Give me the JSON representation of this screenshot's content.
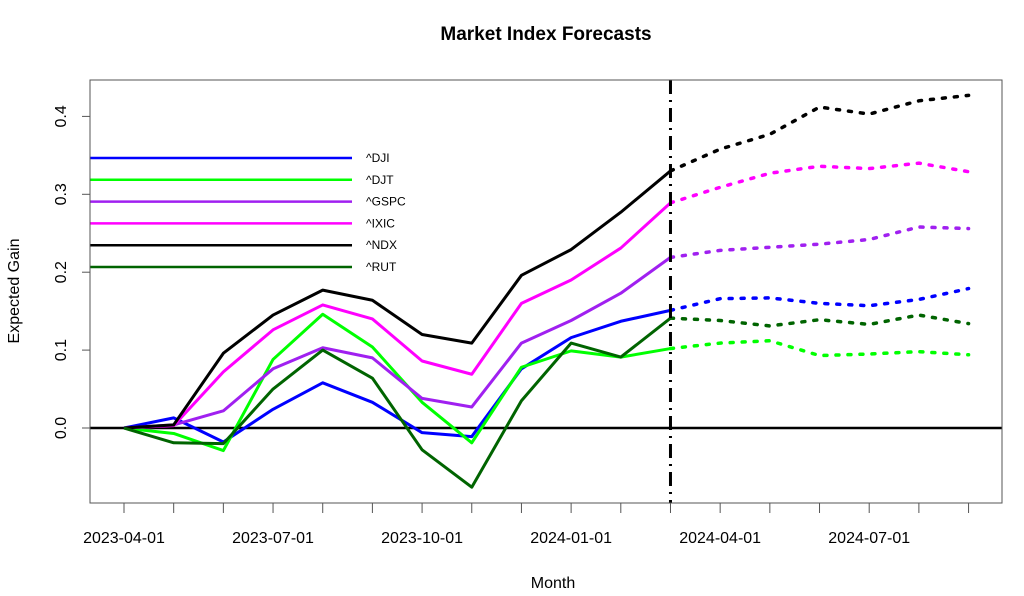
{
  "chart_data": {
    "type": "line",
    "title": "Market Index Forecasts",
    "xlabel": "Month",
    "ylabel": "Expected Gain",
    "ylim": [
      -0.096,
      0.447
    ],
    "y_ticks": [
      0.0,
      0.1,
      0.2,
      0.3,
      0.4
    ],
    "y_tick_labels": [
      "0.0",
      "0.1",
      "0.2",
      "0.3",
      "0.4"
    ],
    "x": [
      "2023-04-01",
      "2023-05-01",
      "2023-06-01",
      "2023-07-01",
      "2023-08-01",
      "2023-09-01",
      "2023-10-01",
      "2023-11-01",
      "2023-12-01",
      "2024-01-01",
      "2024-02-01",
      "2024-03-01",
      "2024-04-01",
      "2024-05-01",
      "2024-06-01",
      "2024-07-01",
      "2024-08-01",
      "2024-09-01"
    ],
    "x_tick_labels": [
      {
        "index": 0,
        "label": "2023-04-01"
      },
      {
        "index": 3,
        "label": "2023-07-01"
      },
      {
        "index": 6,
        "label": "2023-10-01"
      },
      {
        "index": 9,
        "label": "2024-01-01"
      },
      {
        "index": 12,
        "label": "2024-04-01"
      },
      {
        "index": 15,
        "label": "2024-07-01"
      }
    ],
    "forecast_start_index": 11,
    "forecast_divider": {
      "x": "2024-03-01",
      "style": "dot-dash"
    },
    "reference_line": {
      "y": 0.0
    },
    "legend_position": "top-left",
    "grid": false,
    "series": [
      {
        "name": "^DJI",
        "color": "#0000FF",
        "values": [
          0.0,
          0.013,
          -0.018,
          0.024,
          0.058,
          0.033,
          -0.006,
          -0.011,
          0.076,
          0.116,
          0.137,
          0.151,
          0.166,
          0.167,
          0.16,
          0.157,
          0.165,
          0.179
        ]
      },
      {
        "name": "^DJT",
        "color": "#00FF00",
        "values": [
          0.0,
          -0.007,
          -0.029,
          0.088,
          0.146,
          0.104,
          0.033,
          -0.019,
          0.078,
          0.099,
          0.091,
          0.102,
          0.109,
          0.112,
          0.093,
          0.095,
          0.098,
          0.094
        ]
      },
      {
        "name": "^GSPC",
        "color": "#A020F0",
        "values": [
          0.0,
          0.004,
          0.022,
          0.076,
          0.103,
          0.09,
          0.038,
          0.027,
          0.109,
          0.138,
          0.173,
          0.219,
          0.228,
          0.232,
          0.236,
          0.242,
          0.258,
          0.256
        ]
      },
      {
        "name": "^IXIC",
        "color": "#FF00FF",
        "values": [
          0.0,
          0.003,
          0.072,
          0.126,
          0.158,
          0.14,
          0.086,
          0.069,
          0.16,
          0.19,
          0.231,
          0.289,
          0.309,
          0.327,
          0.336,
          0.333,
          0.34,
          0.329
        ]
      },
      {
        "name": "^NDX",
        "color": "#000000",
        "values": [
          0.0,
          0.004,
          0.096,
          0.145,
          0.177,
          0.164,
          0.12,
          0.109,
          0.196,
          0.229,
          0.277,
          0.33,
          0.358,
          0.377,
          0.412,
          0.403,
          0.42,
          0.427
        ]
      },
      {
        "name": "^RUT",
        "color": "#006400",
        "values": [
          0.0,
          -0.019,
          -0.02,
          0.05,
          0.1,
          0.064,
          -0.028,
          -0.076,
          0.035,
          0.109,
          0.091,
          0.141,
          0.138,
          0.131,
          0.139,
          0.133,
          0.145,
          0.134
        ]
      }
    ]
  }
}
